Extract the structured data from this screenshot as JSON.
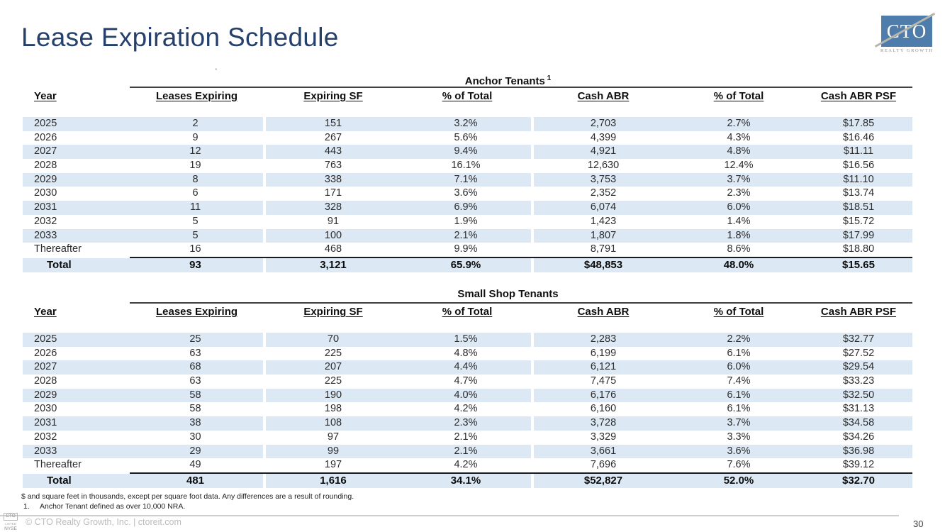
{
  "header": {
    "title": "Lease Expiration Schedule",
    "stray_mark": "."
  },
  "logo": {
    "text": "CTO",
    "subtext": "REALTY GROWTH"
  },
  "tables": [
    {
      "name": "anchor-tenants",
      "title": "Anchor Tenants",
      "title_superscript": "1",
      "columns": [
        "Year",
        "Leases Expiring",
        "Expiring SF",
        "% of Total",
        "Cash ABR",
        "% of Total",
        "Cash ABR PSF"
      ],
      "rows": [
        [
          "2025",
          "2",
          "151",
          "3.2%",
          "2,703",
          "2.7%",
          "$17.85"
        ],
        [
          "2026",
          "9",
          "267",
          "5.6%",
          "4,399",
          "4.3%",
          "$16.46"
        ],
        [
          "2027",
          "12",
          "443",
          "9.4%",
          "4,921",
          "4.8%",
          "$11.11"
        ],
        [
          "2028",
          "19",
          "763",
          "16.1%",
          "12,630",
          "12.4%",
          "$16.56"
        ],
        [
          "2029",
          "8",
          "338",
          "7.1%",
          "3,753",
          "3.7%",
          "$11.10"
        ],
        [
          "2030",
          "6",
          "171",
          "3.6%",
          "2,352",
          "2.3%",
          "$13.74"
        ],
        [
          "2031",
          "11",
          "328",
          "6.9%",
          "6,074",
          "6.0%",
          "$18.51"
        ],
        [
          "2032",
          "5",
          "91",
          "1.9%",
          "1,423",
          "1.4%",
          "$15.72"
        ],
        [
          "2033",
          "5",
          "100",
          "2.1%",
          "1,807",
          "1.8%",
          "$17.99"
        ],
        [
          "Thereafter",
          "16",
          "468",
          "9.9%",
          "8,791",
          "8.6%",
          "$18.80"
        ]
      ],
      "total_row": [
        "Total",
        "93",
        "3,121",
        "65.9%",
        "$48,853",
        "48.0%",
        "$15.65"
      ]
    },
    {
      "name": "small-shop-tenants",
      "title": "Small Shop Tenants",
      "title_superscript": "",
      "columns": [
        "Year",
        "Leases Expiring",
        "Expiring SF",
        "% of Total",
        "Cash ABR",
        "% of Total",
        "Cash ABR PSF"
      ],
      "rows": [
        [
          "2025",
          "25",
          "70",
          "1.5%",
          "2,283",
          "2.2%",
          "$32.77"
        ],
        [
          "2026",
          "63",
          "225",
          "4.8%",
          "6,199",
          "6.1%",
          "$27.52"
        ],
        [
          "2027",
          "68",
          "207",
          "4.4%",
          "6,121",
          "6.0%",
          "$29.54"
        ],
        [
          "2028",
          "63",
          "225",
          "4.7%",
          "7,475",
          "7.4%",
          "$33.23"
        ],
        [
          "2029",
          "58",
          "190",
          "4.0%",
          "6,176",
          "6.1%",
          "$32.50"
        ],
        [
          "2030",
          "58",
          "198",
          "4.2%",
          "6,160",
          "6.1%",
          "$31.13"
        ],
        [
          "2031",
          "38",
          "108",
          "2.3%",
          "3,728",
          "3.7%",
          "$34.58"
        ],
        [
          "2032",
          "30",
          "97",
          "2.1%",
          "3,329",
          "3.3%",
          "$34.26"
        ],
        [
          "2033",
          "29",
          "99",
          "2.1%",
          "3,661",
          "3.6%",
          "$36.98"
        ],
        [
          "Thereafter",
          "49",
          "197",
          "4.2%",
          "7,696",
          "7.6%",
          "$39.12"
        ]
      ],
      "total_row": [
        "Total",
        "481",
        "1,616",
        "34.1%",
        "$52,827",
        "52.0%",
        "$32.70"
      ]
    }
  ],
  "footnotes": {
    "general": "$ and square feet in thousands, except per square foot data. Any differences are a result of rounding.",
    "numbered": [
      {
        "number": "1.",
        "text": "Anchor Tenant defined as over 10,000 NRA."
      }
    ]
  },
  "footer": {
    "badge": [
      "CTO",
      "LISTED",
      "NYSE"
    ],
    "copyright": "© CTO Realty Growth, Inc. | ctoreit.com",
    "page_number": "30"
  },
  "colors": {
    "title_navy": "#24406b",
    "row_shade": "#dce8f4",
    "logo_blue": "#4e7dab"
  }
}
